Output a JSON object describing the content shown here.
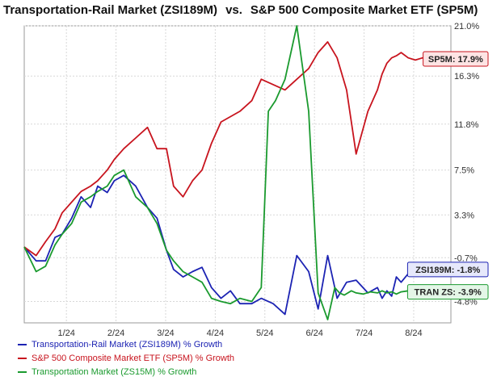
{
  "chart_data": {
    "type": "line",
    "title": {
      "left": "Transportation-Rail Market (ZSI189M)",
      "vs": "vs.",
      "right": "S&P 500 Composite Market ETF (SP5M)"
    },
    "x_tick_labels": [
      "1/24",
      "2/24",
      "3/24",
      "4/24",
      "5/24",
      "6/24",
      "7/24",
      "8/24"
    ],
    "y_tick_labels": [
      "21.0%",
      "16.3%",
      "11.8%",
      "7.5%",
      "3.3%",
      "-0.7%",
      "-4.8%"
    ],
    "y_tick_values": [
      21.0,
      16.3,
      11.8,
      7.5,
      3.3,
      -0.7,
      -4.8
    ],
    "xlim": [
      0,
      180
    ],
    "ylim": [
      -6.8,
      21.0
    ],
    "grid": true,
    "y_axis_side": "right",
    "series": [
      {
        "name": "Transportation-Rail Market (ZSI189M) % Growth",
        "color": "#1c23b3",
        "end_label": "ZSI189M: -1.8%",
        "x": [
          0,
          5,
          9,
          13,
          16,
          20,
          24,
          28,
          31,
          35,
          38,
          42,
          47,
          52,
          56,
          60,
          63,
          67,
          71,
          75,
          79,
          83,
          87,
          91,
          96,
          100,
          105,
          110,
          115,
          120,
          124,
          128,
          132,
          136,
          140,
          145,
          149,
          151,
          153,
          155,
          157,
          159,
          162,
          165,
          168,
          172,
          176,
          180
        ],
        "y": [
          0.3,
          -1.0,
          -1.0,
          1.2,
          1.5,
          3.0,
          5.0,
          4.0,
          6.0,
          5.4,
          6.5,
          7.0,
          6.0,
          4.0,
          3.0,
          0.0,
          -1.8,
          -2.5,
          -2.0,
          -1.6,
          -3.5,
          -4.5,
          -3.8,
          -5.0,
          -5.0,
          -4.5,
          -5.0,
          -6.0,
          -0.5,
          -2.0,
          -5.5,
          -0.5,
          -4.5,
          -3.0,
          -2.8,
          -4.0,
          -3.5,
          -4.5,
          -3.8,
          -4.3,
          -2.5,
          -3.0,
          -2.2,
          -1.9,
          -2.1,
          -1.8,
          -1.6,
          -1.8
        ]
      },
      {
        "name": "S&P 500 Composite Market ETF (SP5M) % Growth",
        "color": "#c8141e",
        "end_label": "SP5M: 17.9%",
        "x": [
          0,
          5,
          9,
          13,
          16,
          20,
          24,
          28,
          31,
          35,
          38,
          42,
          47,
          52,
          56,
          60,
          63,
          67,
          71,
          75,
          79,
          83,
          87,
          91,
          96,
          100,
          105,
          110,
          115,
          120,
          124,
          128,
          132,
          136,
          140,
          145,
          149,
          151,
          153,
          155,
          157,
          159,
          162,
          165,
          168,
          172,
          176,
          180
        ],
        "y": [
          0.3,
          -0.5,
          0.8,
          2.0,
          3.5,
          4.5,
          5.5,
          6.0,
          6.5,
          7.5,
          8.5,
          9.5,
          10.5,
          11.5,
          9.5,
          9.5,
          6.0,
          5.0,
          6.5,
          7.5,
          10.0,
          12.0,
          12.5,
          13.0,
          14.0,
          16.0,
          15.5,
          15.0,
          16.0,
          17.0,
          18.5,
          19.5,
          18.0,
          15.0,
          9.0,
          13.0,
          15.0,
          16.5,
          17.5,
          18.0,
          18.2,
          18.5,
          18.0,
          17.8,
          18.0,
          17.9,
          18.0,
          17.9
        ]
      },
      {
        "name": "Transportation Market (ZS15M) % Growth",
        "color": "#1a9a2e",
        "end_label": "TRAN ZS: -3.9%",
        "x": [
          0,
          5,
          9,
          13,
          16,
          20,
          24,
          28,
          31,
          35,
          38,
          42,
          47,
          52,
          56,
          60,
          63,
          67,
          71,
          75,
          79,
          83,
          87,
          91,
          96,
          100,
          103,
          106,
          110,
          115,
          120,
          124,
          128,
          131,
          133,
          135,
          138,
          140,
          143,
          146,
          149,
          151,
          153,
          155,
          157,
          159,
          162,
          165,
          168,
          172,
          176,
          180
        ],
        "y": [
          0.3,
          -2.0,
          -1.5,
          0.5,
          1.5,
          2.5,
          4.5,
          5.0,
          5.5,
          6.0,
          7.0,
          7.5,
          5.0,
          4.0,
          2.5,
          0.0,
          -1.0,
          -2.0,
          -2.5,
          -3.0,
          -4.5,
          -4.8,
          -5.0,
          -4.5,
          -4.8,
          -3.5,
          13.0,
          14.0,
          16.0,
          21.0,
          13.0,
          -4.0,
          -6.5,
          -3.5,
          -4.0,
          -4.2,
          -3.8,
          -4.0,
          -4.1,
          -3.9,
          -4.0,
          -3.8,
          -4.0,
          -3.9,
          -4.1,
          -3.9,
          -3.8,
          -3.9,
          -4.0,
          -3.9,
          -3.8,
          -3.9
        ]
      }
    ]
  }
}
